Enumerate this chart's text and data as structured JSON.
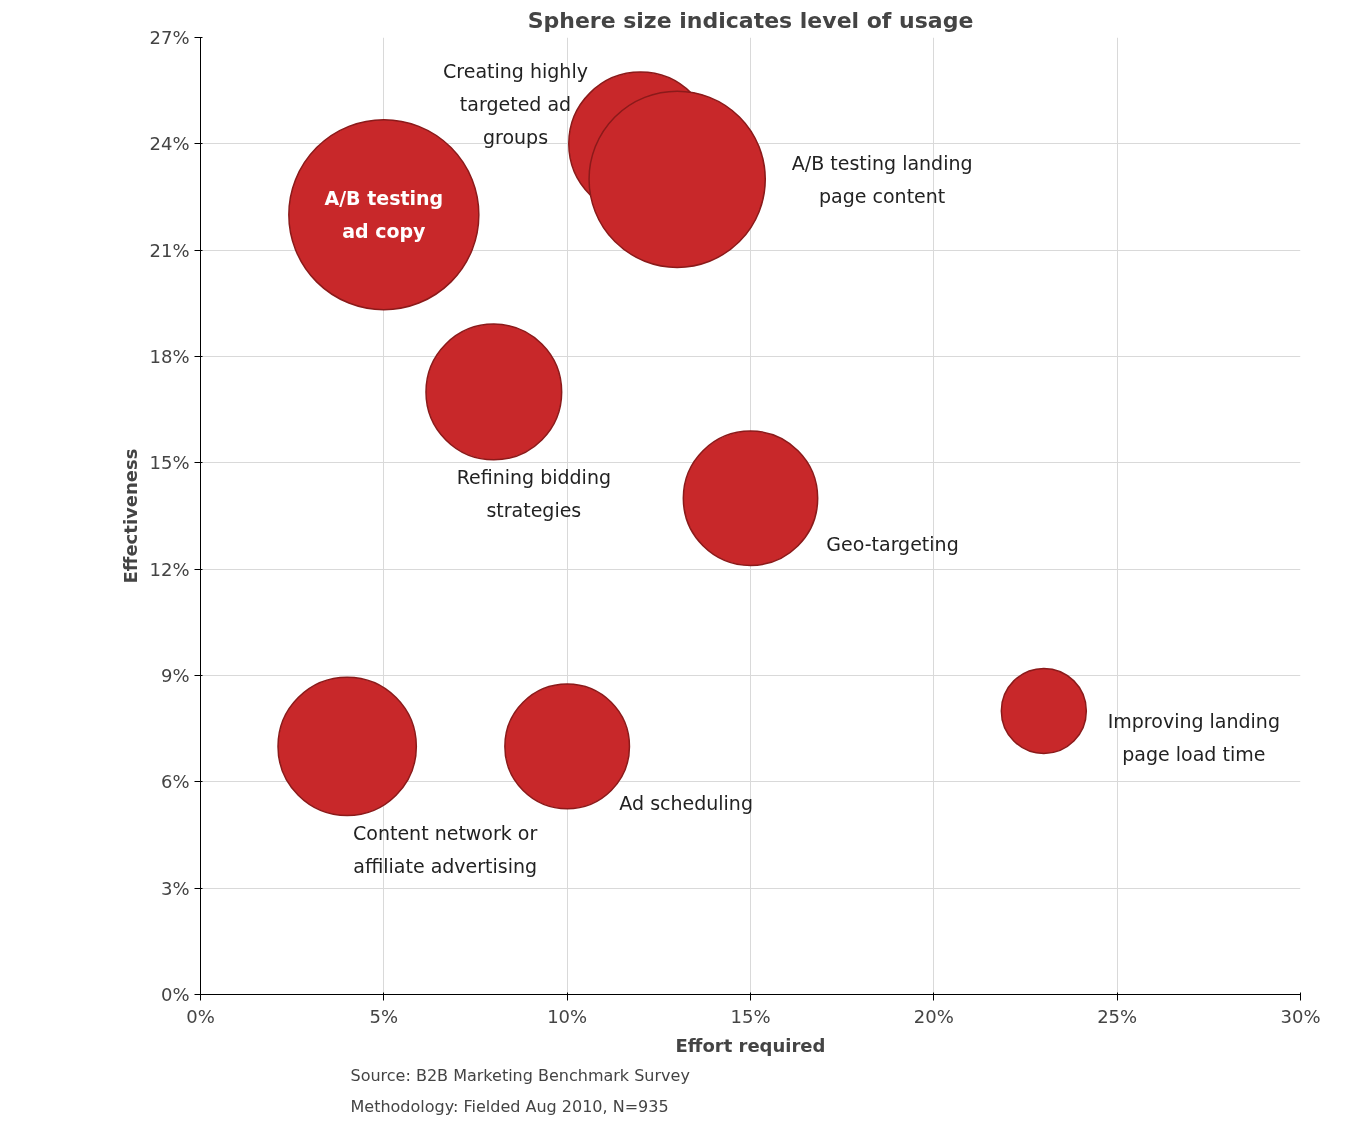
{
  "chart_data": {
    "type": "bubble",
    "title": "Sphere size indicates level of usage",
    "xlabel": "Effort required",
    "ylabel": "Effectiveness",
    "series": [
      {
        "name": "A/B testing ad copy",
        "color": "#c8282a",
        "x": [
          5
        ],
        "values": [
          22
        ],
        "sizes": [
          1
        ]
      },
      {
        "name": "Creating highly targeted ad groups",
        "color": "#c8282a",
        "x": [
          12
        ],
        "values": [
          24
        ],
        "sizes": [
          0.57
        ]
      },
      {
        "name": "A/B testing landing page content",
        "color": "#c8282a",
        "x": [
          13
        ],
        "values": [
          23
        ],
        "sizes": [
          0.86
        ]
      },
      {
        "name": "Refining bidding strategies",
        "color": "#c8282a",
        "x": [
          8
        ],
        "values": [
          17
        ],
        "sizes": [
          0.51
        ]
      },
      {
        "name": "Geo-targeting",
        "color": "#c8282a",
        "x": [
          15
        ],
        "values": [
          14
        ],
        "sizes": [
          0.5
        ]
      },
      {
        "name": "Content network or affiliate advertising",
        "color": "#c8282a",
        "x": [
          4
        ],
        "values": [
          7
        ],
        "sizes": [
          0.53
        ]
      },
      {
        "name": "Ad scheduling",
        "color": "#c8282a",
        "x": [
          10
        ],
        "values": [
          7
        ],
        "sizes": [
          0.43
        ]
      },
      {
        "name": "Improving landing page load time",
        "color": "#c8282a",
        "x": [
          23
        ],
        "values": [
          8
        ],
        "sizes": [
          0.2
        ]
      }
    ],
    "xlim": [
      0,
      30
    ],
    "ylim": [
      0,
      27
    ],
    "xticks": [
      {
        "value": 0,
        "label": "0%"
      },
      {
        "value": 5,
        "label": "5%"
      },
      {
        "value": 10,
        "label": "10%"
      },
      {
        "value": 15,
        "label": "15%"
      },
      {
        "value": 20,
        "label": "20%"
      },
      {
        "value": 25,
        "label": "25%"
      },
      {
        "value": 30,
        "label": "30%"
      }
    ],
    "yticks": [
      {
        "value": 0,
        "label": "0%"
      },
      {
        "value": 3,
        "label": "3%"
      },
      {
        "value": 6,
        "label": "6%"
      },
      {
        "value": 9,
        "label": "9%"
      },
      {
        "value": 12,
        "label": "12%"
      },
      {
        "value": 15,
        "label": "15%"
      },
      {
        "value": 18,
        "label": "18%"
      },
      {
        "value": 21,
        "label": "21%"
      },
      {
        "value": 24,
        "label": "24%"
      },
      {
        "value": 27,
        "label": "27%"
      }
    ],
    "grid": true,
    "marker": "circle",
    "annotations": [
      "Source: B2B Marketing Benchmark Survey",
      "Methodology: Fielded Aug 2010, N=935"
    ]
  }
}
